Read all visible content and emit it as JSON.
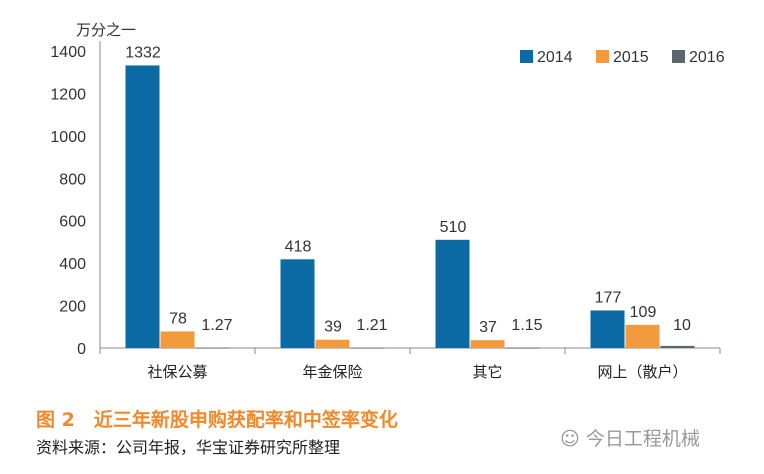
{
  "chart_data": {
    "type": "bar",
    "unit_label": "万分之一",
    "categories": [
      "社保公募",
      "年金保险",
      "其它",
      "网上（散户）"
    ],
    "series": [
      {
        "name": "2014",
        "color": "#0b6aa3",
        "values": [
          1332,
          418,
          510,
          177
        ],
        "labels": [
          "1332",
          "418",
          "510",
          "177"
        ]
      },
      {
        "name": "2015",
        "color": "#f29a3e",
        "values": [
          78,
          39,
          37,
          109
        ],
        "labels": [
          "78",
          "39",
          "37",
          "109"
        ]
      },
      {
        "name": "2016",
        "color": "#5b6670",
        "values": [
          1.27,
          1.21,
          1.15,
          10
        ],
        "labels": [
          "1.27",
          "1.21",
          "1.15",
          "10"
        ]
      }
    ],
    "ylim": [
      0,
      1400
    ],
    "yticks": [
      0,
      200,
      400,
      600,
      800,
      1000,
      1200,
      1400
    ],
    "legend": "top-right",
    "grid": false
  },
  "caption": "图 2　近三年新股申购获配率和中签率变化",
  "source": "资料来源：公司年报，华宝证券研究所整理",
  "watermark": "今日工程机械"
}
